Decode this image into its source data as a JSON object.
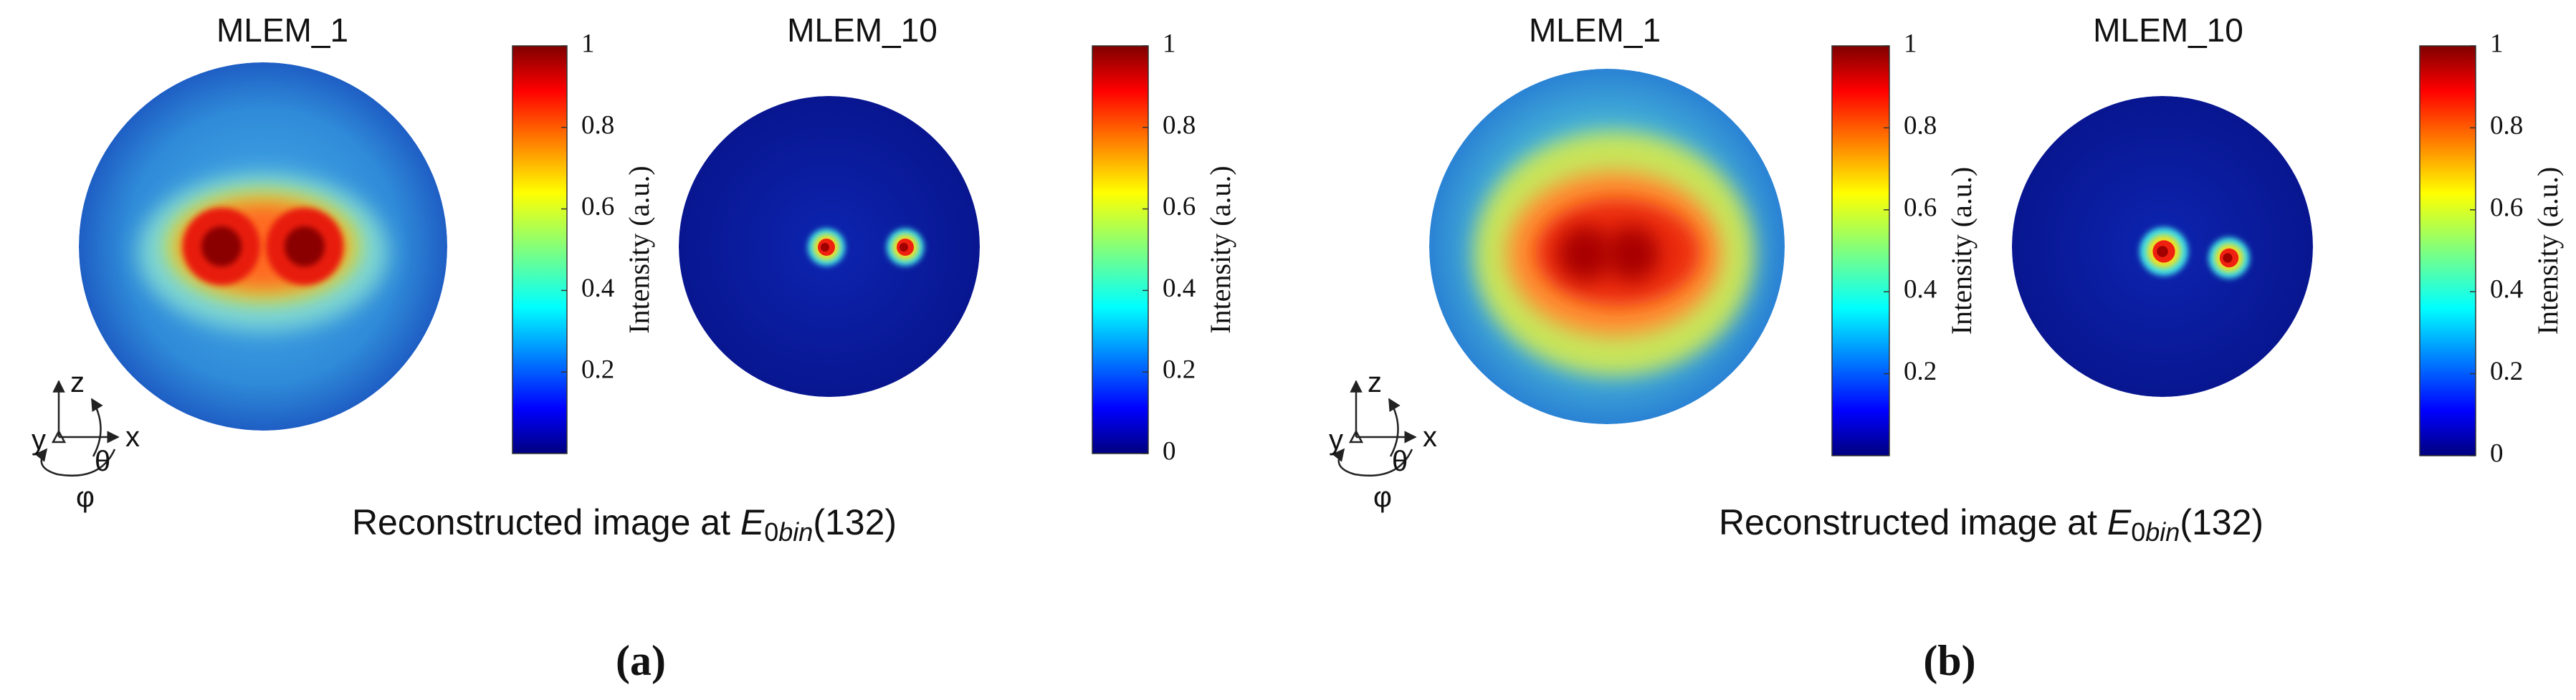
{
  "panels": [
    {
      "label": "(a)",
      "caption": {
        "prefix": "Reconstructed image at ",
        "symbol": "E",
        "subscript_number": "0",
        "subscript_italic": "bin",
        "suffix": "(132)"
      },
      "axes_icon": {
        "z": "z",
        "y": "y",
        "x": "x",
        "theta": "θ",
        "phi": "φ"
      },
      "images": [
        {
          "title": "MLEM_1",
          "colorbar": {
            "label": "Intensity (a.u.)",
            "ticks": [
              0.2,
              0.4,
              0.6,
              0.8,
              1
            ]
          }
        },
        {
          "title": "MLEM_10",
          "colorbar": {
            "label": "Intensity (a.u.)",
            "ticks": [
              0,
              0.2,
              0.4,
              0.6,
              0.8,
              1
            ]
          }
        }
      ]
    },
    {
      "label": "(b)",
      "caption": {
        "prefix": "Reconstructed image at ",
        "symbol": "E",
        "subscript_number": "0",
        "subscript_italic": "bin",
        "suffix": "(132)"
      },
      "axes_icon": {
        "z": "z",
        "y": "y",
        "x": "x",
        "theta": "θ",
        "phi": "φ"
      },
      "images": [
        {
          "title": "MLEM_1",
          "colorbar": {
            "label": "Intensity (a.u.)",
            "ticks": [
              0.2,
              0.4,
              0.6,
              0.8,
              1
            ]
          }
        },
        {
          "title": "MLEM_10",
          "colorbar": {
            "label": "Intensity (a.u.)",
            "ticks": [
              0,
              0.2,
              0.4,
              0.6,
              0.8,
              1
            ]
          }
        }
      ]
    }
  ]
}
